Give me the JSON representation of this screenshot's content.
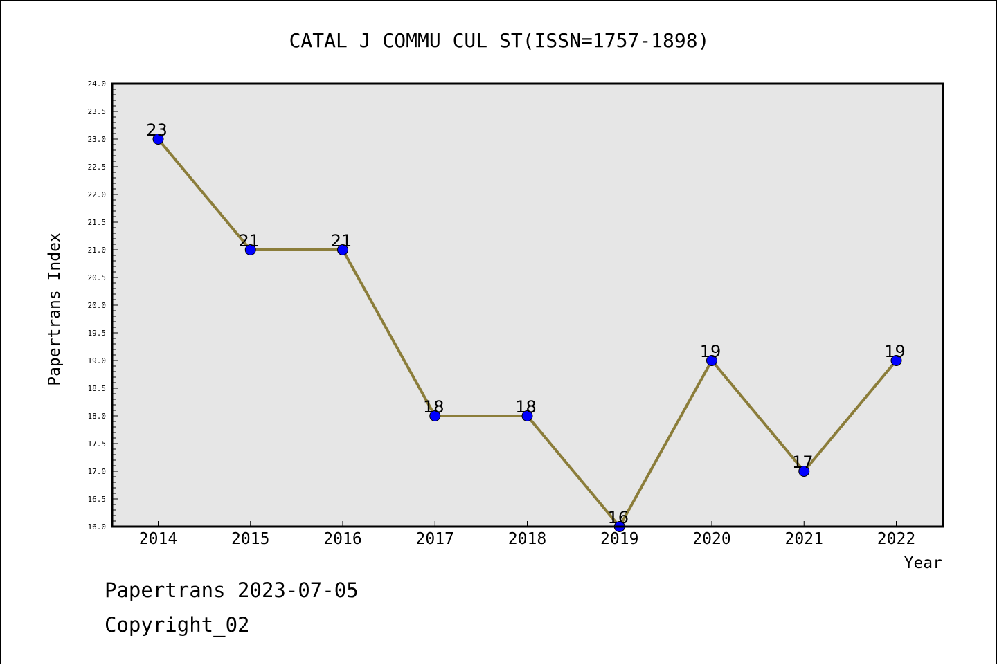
{
  "chart_data": {
    "type": "line",
    "title": "CATAL J COMMU CUL ST(ISSN=1757-1898)",
    "xlabel": "Year",
    "ylabel": "Papertrans Index",
    "categories": [
      "2014",
      "2015",
      "2016",
      "2017",
      "2018",
      "2019",
      "2020",
      "2021",
      "2022"
    ],
    "series": [
      {
        "values": [
          23,
          21,
          21,
          18,
          18,
          16,
          19,
          17,
          19
        ]
      }
    ],
    "data_labels": [
      "23",
      "21",
      "21",
      "18",
      "18",
      "16",
      "19",
      "17",
      "19"
    ],
    "ylim": [
      16.0,
      24.0
    ],
    "y_ticks": [
      "16.0",
      "16.5",
      "17.0",
      "17.5",
      "18.0",
      "18.5",
      "19.0",
      "19.5",
      "20.0",
      "20.5",
      "21.0",
      "21.5",
      "22.0",
      "22.5",
      "23.0",
      "23.5",
      "24.0"
    ],
    "y_minor_step": 0.1,
    "grid": false,
    "legend": "none",
    "colors": {
      "plot_background": "#e6e6e6",
      "line": "#8b7d3a",
      "marker": "#0000ff",
      "marker_edge": "#000000"
    }
  },
  "footer": {
    "source": "Papertrans 2023-07-05",
    "copyright": "Copyright_02"
  }
}
